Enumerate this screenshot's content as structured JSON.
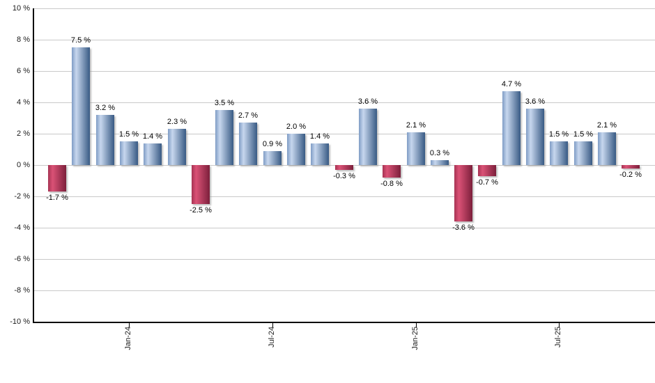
{
  "chart_data": {
    "type": "bar",
    "title": "",
    "xlabel": "",
    "ylabel": "",
    "ylim": [
      -10,
      10
    ],
    "grid": true,
    "legend": "none",
    "value_suffix": " %",
    "bars": [
      {
        "value": -1.7,
        "label": "-1.7 %"
      },
      {
        "value": 7.5,
        "label": "7.5 %"
      },
      {
        "value": 3.2,
        "label": "3.2 %"
      },
      {
        "value": 1.5,
        "label": "1.5 %"
      },
      {
        "value": 1.4,
        "label": "1.4 %"
      },
      {
        "value": 2.3,
        "label": "2.3 %"
      },
      {
        "value": -2.5,
        "label": "-2.5 %"
      },
      {
        "value": 3.5,
        "label": "3.5 %"
      },
      {
        "value": 2.7,
        "label": "2.7 %"
      },
      {
        "value": 0.9,
        "label": "0.9 %"
      },
      {
        "value": 2.0,
        "label": "2.0 %"
      },
      {
        "value": 1.4,
        "label": "1.4 %"
      },
      {
        "value": -0.3,
        "label": "-0.3 %"
      },
      {
        "value": 3.6,
        "label": "3.6 %"
      },
      {
        "value": -0.8,
        "label": "-0.8 %"
      },
      {
        "value": 2.1,
        "label": "2.1 %"
      },
      {
        "value": 0.3,
        "label": "0.3 %"
      },
      {
        "value": -3.6,
        "label": "-3.6 %"
      },
      {
        "value": -0.7,
        "label": "-0.7 %"
      },
      {
        "value": 4.7,
        "label": "4.7 %"
      },
      {
        "value": 3.6,
        "label": "3.6 %"
      },
      {
        "value": 1.5,
        "label": "1.5 %"
      },
      {
        "value": 1.5,
        "label": "1.5 %"
      },
      {
        "value": 2.1,
        "label": "2.1 %"
      },
      {
        "value": -0.2,
        "label": "-0.2 %"
      }
    ],
    "y_ticks": [
      {
        "value": 10,
        "label": "10 %"
      },
      {
        "value": 8,
        "label": "8 %"
      },
      {
        "value": 6,
        "label": "6 %"
      },
      {
        "value": 4,
        "label": "4 %"
      },
      {
        "value": 2,
        "label": "2 %"
      },
      {
        "value": 0,
        "label": "0 %"
      },
      {
        "value": -2,
        "label": "-2 %"
      },
      {
        "value": -4,
        "label": "-4 %"
      },
      {
        "value": -6,
        "label": "-6 %"
      },
      {
        "value": -8,
        "label": "-8 %"
      },
      {
        "value": -10,
        "label": "-10 %"
      }
    ],
    "x_ticks": [
      {
        "bar_index": 3,
        "label": "Jan-24"
      },
      {
        "bar_index": 9,
        "label": "Jul-24"
      },
      {
        "bar_index": 15,
        "label": "Jan-25"
      },
      {
        "bar_index": 21,
        "label": "Jul-25"
      }
    ],
    "colors": {
      "positive_gradient": [
        "#7f9cc5",
        "#c7d7ee",
        "#385a84"
      ],
      "negative_gradient": [
        "#a63353",
        "#da5276",
        "#7c1f3b"
      ],
      "gridline": "#c9c9c9",
      "axis": "#000000",
      "label_text": "#000000"
    }
  }
}
